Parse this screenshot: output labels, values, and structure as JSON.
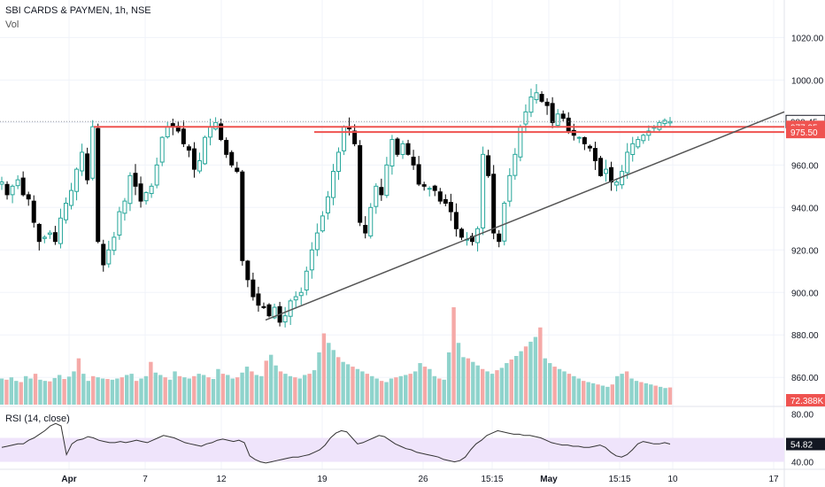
{
  "header": {
    "title": "SBI CARDS & PAYMEN, 1h, NSE",
    "volume_label": "Vol",
    "rsi_label": "RSI (14, close)"
  },
  "colors": {
    "up": "#26a69a",
    "down": "#000000",
    "hline": "#ef5350",
    "trendline": "#555555",
    "vol_up": "#8fd3cc",
    "vol_down": "#f5a9a7",
    "rsi_line": "#333333",
    "rsi_band": "#efe4fb"
  },
  "chart_data": [
    {
      "type": "candlestick",
      "title": "SBI CARDS & PAYMEN, 1h, NSE",
      "y_axis": {
        "ticks": [
          "1020.00",
          "1000.00",
          "980.00",
          "960.00",
          "940.00",
          "920.00",
          "900.00",
          "880.00",
          "860.00"
        ],
        "ylim": [
          848,
          1026
        ]
      },
      "x_axis": {
        "ticks": [
          "Apr",
          "7",
          "12",
          "19",
          "26",
          "15:15",
          "May",
          "15:15",
          "10",
          "17"
        ]
      },
      "price_labels": {
        "last": "980.45",
        "level_1": "977.95",
        "level_2": "975.50",
        "volume": "72.388K"
      },
      "close_path": [
        952,
        946,
        950,
        953,
        946,
        944,
        933,
        924,
        926,
        928,
        924,
        935,
        942,
        948,
        958,
        966,
        953,
        978,
        924,
        913,
        920,
        926,
        938,
        943,
        955,
        950,
        943,
        947,
        950,
        960,
        973,
        978,
        978,
        976,
        970,
        967,
        958,
        962,
        973,
        978,
        980,
        972,
        965,
        960,
        957,
        915,
        906,
        898,
        894,
        893,
        889,
        893,
        886,
        889,
        896,
        898,
        900,
        910,
        920,
        928,
        936,
        945,
        957,
        966,
        978,
        977,
        970,
        933,
        928,
        940,
        950,
        946,
        960,
        972,
        965,
        970,
        965,
        960,
        951,
        950,
        949,
        948,
        943,
        942,
        938,
        930,
        926,
        925,
        924,
        930,
        965,
        955,
        928,
        924,
        942,
        955,
        965,
        978,
        985,
        992,
        994,
        990,
        988,
        980,
        984,
        982,
        976,
        974,
        973,
        970,
        968,
        962,
        955,
        958,
        952,
        952,
        957,
        966,
        970,
        972,
        974,
        976,
        978,
        980,
        981,
        980.45
      ]
    },
    {
      "type": "bar",
      "title": "Vol",
      "values_k": [
        110,
        105,
        115,
        100,
        95,
        120,
        110,
        130,
        105,
        100,
        98,
        112,
        125,
        108,
        118,
        140,
        195,
        130,
        100,
        120,
        115,
        110,
        108,
        105,
        110,
        115,
        125,
        130,
        100,
        110,
        120,
        180,
        135,
        125,
        115,
        105,
        140,
        120,
        115,
        110,
        120,
        130,
        125,
        115,
        108,
        150,
        130,
        125,
        110,
        115,
        135,
        160,
        140,
        125,
        120,
        185,
        210,
        165,
        140,
        130,
        120,
        115,
        110,
        125,
        130,
        145,
        220,
        300,
        260,
        230,
        200,
        180,
        170,
        160,
        150,
        140,
        130,
        120,
        110,
        100,
        95,
        110,
        115,
        120,
        125,
        130,
        140,
        175,
        160,
        150,
        120,
        110,
        105,
        220,
        410,
        260,
        200,
        195,
        180,
        165,
        150,
        140,
        130,
        145,
        155,
        175,
        190,
        205,
        225,
        245,
        265,
        285,
        325,
        195,
        175,
        160,
        150,
        140,
        130,
        120,
        110,
        100,
        95,
        90,
        85,
        80,
        75,
        85,
        120,
        130,
        140,
        110,
        100,
        95,
        90,
        85,
        80,
        75,
        70,
        72.388
      ]
    },
    {
      "type": "line",
      "title": "RSI (14, close)",
      "y_axis": {
        "ticks": [
          "80.00",
          "40.00"
        ],
        "ylim": [
          36,
          84
        ],
        "band": [
          40,
          60
        ]
      },
      "last_value": "54.82",
      "values": [
        52,
        53,
        54,
        55,
        55,
        58,
        60,
        63,
        66,
        70,
        72,
        70,
        46,
        55,
        58,
        59,
        61,
        60,
        58,
        57,
        56,
        56,
        57,
        56,
        57,
        58,
        57,
        56,
        58,
        60,
        62,
        61,
        60,
        58,
        56,
        55,
        54,
        53,
        55,
        56,
        58,
        59,
        58,
        57,
        58,
        56,
        45,
        42,
        40,
        39,
        40,
        41,
        42,
        43,
        44,
        44,
        45,
        46,
        48,
        50,
        54,
        60,
        64,
        66,
        65,
        60,
        55,
        56,
        58,
        60,
        62,
        61,
        58,
        55,
        53,
        51,
        50,
        48,
        47,
        46,
        45,
        44,
        42,
        41,
        40,
        41,
        44,
        50,
        55,
        58,
        62,
        64,
        66,
        65,
        64,
        63,
        63,
        62,
        62,
        61,
        60,
        58,
        56,
        55,
        54,
        54,
        53,
        53,
        52,
        52,
        53,
        54,
        52,
        48,
        45,
        44,
        46,
        50,
        55,
        57,
        56,
        55,
        55,
        56,
        54.82
      ]
    }
  ]
}
